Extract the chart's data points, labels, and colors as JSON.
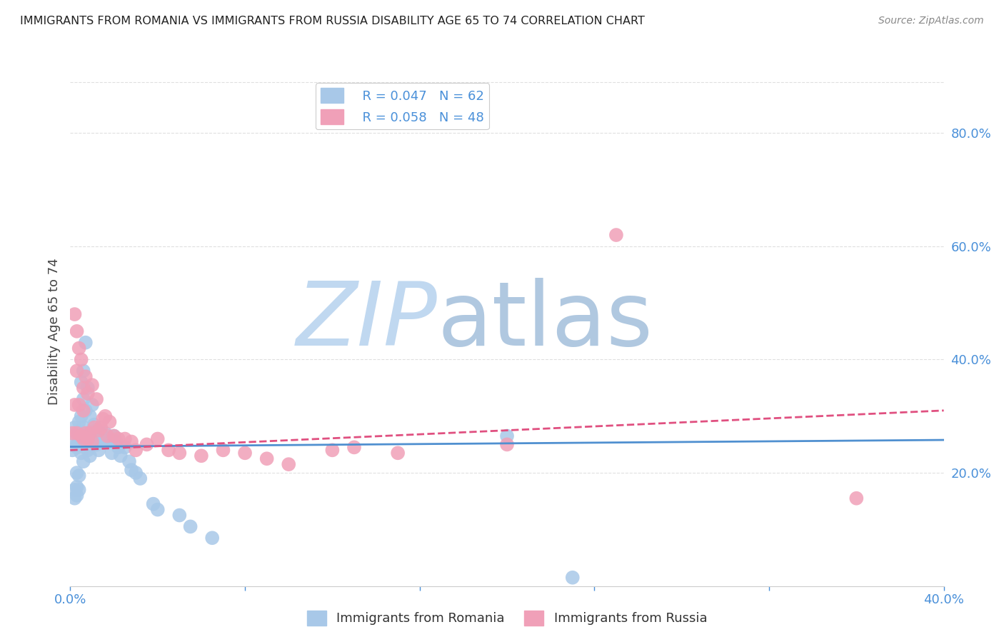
{
  "title": "IMMIGRANTS FROM ROMANIA VS IMMIGRANTS FROM RUSSIA DISABILITY AGE 65 TO 74 CORRELATION CHART",
  "source": "Source: ZipAtlas.com",
  "ylabel": "Disability Age 65 to 74",
  "xlim": [
    0.0,
    0.4
  ],
  "ylim": [
    0.0,
    0.9
  ],
  "xticks": [
    0.0,
    0.08,
    0.16,
    0.24,
    0.32,
    0.4
  ],
  "xtick_labels": [
    "0.0%",
    "",
    "",
    "",
    "",
    "40.0%"
  ],
  "yticks_right": [
    0.2,
    0.4,
    0.6,
    0.8
  ],
  "ytick_right_labels": [
    "20.0%",
    "40.0%",
    "60.0%",
    "80.0%"
  ],
  "romania_color": "#a8c8e8",
  "russia_color": "#f0a0b8",
  "romania_R": 0.047,
  "romania_N": 62,
  "russia_R": 0.058,
  "russia_N": 48,
  "romania_line_color": "#5090d0",
  "russia_line_color": "#e05080",
  "watermark_zip": "ZIP",
  "watermark_atlas": "atlas",
  "watermark_color_zip": "#c0d8f0",
  "watermark_color_atlas": "#b0c8e0",
  "title_color": "#222222",
  "axis_color": "#4a90d9",
  "romania_scatter_x": [
    0.001,
    0.002,
    0.002,
    0.002,
    0.002,
    0.003,
    0.003,
    0.003,
    0.003,
    0.003,
    0.004,
    0.004,
    0.004,
    0.004,
    0.004,
    0.005,
    0.005,
    0.005,
    0.005,
    0.006,
    0.006,
    0.006,
    0.006,
    0.007,
    0.007,
    0.007,
    0.008,
    0.008,
    0.008,
    0.009,
    0.009,
    0.009,
    0.01,
    0.01,
    0.011,
    0.011,
    0.012,
    0.012,
    0.013,
    0.013,
    0.014,
    0.015,
    0.016,
    0.017,
    0.018,
    0.019,
    0.02,
    0.021,
    0.022,
    0.023,
    0.025,
    0.027,
    0.028,
    0.03,
    0.032,
    0.038,
    0.04,
    0.05,
    0.055,
    0.065,
    0.2,
    0.23
  ],
  "romania_scatter_y": [
    0.24,
    0.26,
    0.28,
    0.17,
    0.155,
    0.25,
    0.245,
    0.2,
    0.175,
    0.16,
    0.29,
    0.27,
    0.25,
    0.195,
    0.17,
    0.36,
    0.3,
    0.26,
    0.235,
    0.38,
    0.33,
    0.28,
    0.22,
    0.43,
    0.31,
    0.255,
    0.35,
    0.27,
    0.24,
    0.3,
    0.265,
    0.23,
    0.32,
    0.26,
    0.285,
    0.255,
    0.275,
    0.25,
    0.27,
    0.24,
    0.27,
    0.255,
    0.27,
    0.26,
    0.255,
    0.235,
    0.265,
    0.255,
    0.245,
    0.23,
    0.245,
    0.22,
    0.205,
    0.2,
    0.19,
    0.145,
    0.135,
    0.125,
    0.105,
    0.085,
    0.265,
    0.015
  ],
  "russia_scatter_x": [
    0.001,
    0.002,
    0.002,
    0.003,
    0.003,
    0.003,
    0.004,
    0.004,
    0.005,
    0.005,
    0.006,
    0.006,
    0.006,
    0.007,
    0.007,
    0.008,
    0.008,
    0.009,
    0.01,
    0.01,
    0.011,
    0.012,
    0.013,
    0.014,
    0.015,
    0.016,
    0.017,
    0.018,
    0.02,
    0.022,
    0.025,
    0.028,
    0.03,
    0.035,
    0.04,
    0.045,
    0.05,
    0.06,
    0.07,
    0.08,
    0.09,
    0.1,
    0.12,
    0.13,
    0.15,
    0.2,
    0.25,
    0.36
  ],
  "russia_scatter_y": [
    0.27,
    0.48,
    0.32,
    0.45,
    0.38,
    0.27,
    0.42,
    0.32,
    0.4,
    0.265,
    0.35,
    0.31,
    0.26,
    0.37,
    0.27,
    0.34,
    0.26,
    0.27,
    0.355,
    0.255,
    0.28,
    0.33,
    0.275,
    0.28,
    0.295,
    0.3,
    0.265,
    0.29,
    0.265,
    0.26,
    0.26,
    0.255,
    0.24,
    0.25,
    0.26,
    0.24,
    0.235,
    0.23,
    0.24,
    0.235,
    0.225,
    0.215,
    0.24,
    0.245,
    0.235,
    0.25,
    0.62,
    0.155
  ],
  "grid_color": "#e0e0e0",
  "background_color": "#ffffff",
  "romania_line_x": [
    0.0,
    0.4
  ],
  "romania_line_y": [
    0.246,
    0.258
  ],
  "russia_line_x": [
    0.0,
    0.4
  ],
  "russia_line_y": [
    0.24,
    0.31
  ]
}
